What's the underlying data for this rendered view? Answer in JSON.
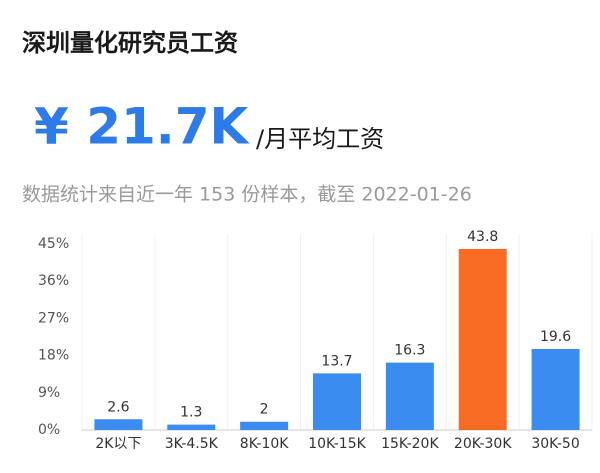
{
  "chart_data": {
    "type": "bar",
    "title": "深圳量化研究员工资",
    "headline": "¥ 21.7K",
    "headline_unit": "/月平均工资",
    "subtitle": "数据统计来自近一年 153 份样本，截至 2022-01-26",
    "categories": [
      "2K以下",
      "3K-4.5K",
      "8K-10K",
      "10K-15K",
      "15K-20K",
      "20K-30K",
      "30K-50"
    ],
    "values": [
      2.6,
      1.3,
      2,
      13.7,
      16.3,
      43.8,
      19.6
    ],
    "colors": [
      "#3b8cf0",
      "#3b8cf0",
      "#3b8cf0",
      "#3b8cf0",
      "#3b8cf0",
      "#f76b22",
      "#3b8cf0"
    ],
    "ylim": [
      0,
      45
    ],
    "yticks": [
      {
        "value": 0,
        "label": "0%"
      },
      {
        "value": 9,
        "label": "9%"
      },
      {
        "value": 18,
        "label": "18%"
      },
      {
        "value": 27,
        "label": "27%"
      },
      {
        "value": 36,
        "label": "36%"
      },
      {
        "value": 45,
        "label": "45%"
      }
    ],
    "grid": false
  }
}
